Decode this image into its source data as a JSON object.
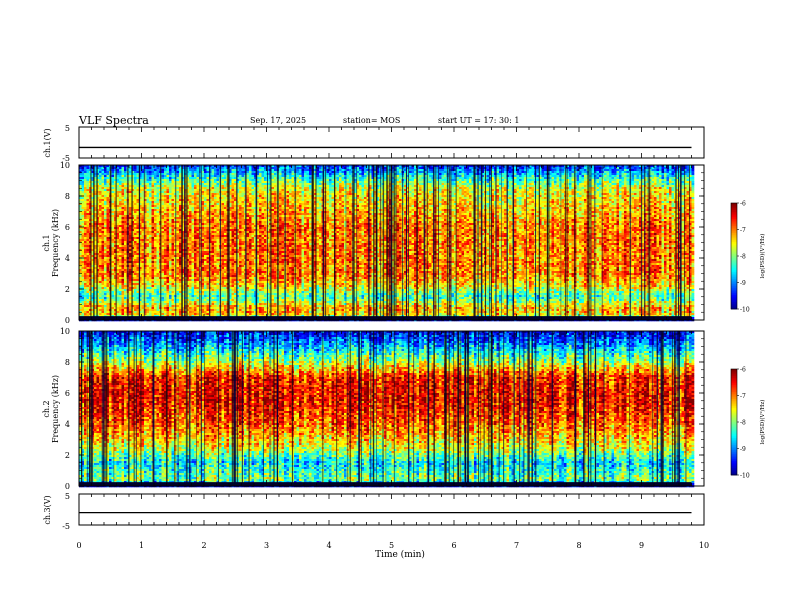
{
  "header": {
    "title": "VLF Spectra",
    "date": "Sep. 17, 2025",
    "station": "station= MOS",
    "start_ut": "start  UT =   17: 30: 1"
  },
  "chart_data": [
    {
      "type": "line",
      "panel": "ch1-waveform",
      "ylabel": "ch.1(V)",
      "ylim": [
        -5,
        5
      ],
      "yticks": [
        "5",
        "-5"
      ],
      "xlim": [
        0,
        10
      ],
      "series": [
        {
          "x": [
            0,
            9.8
          ],
          "values": [
            -1.6,
            -1.6
          ]
        }
      ]
    },
    {
      "type": "heatmap",
      "panel": "ch1-spectrogram",
      "ylabel_line1": "ch.1",
      "ylabel_line2": "Frequency (kHz)",
      "ylim": [
        0,
        10
      ],
      "yticks": [
        "0",
        "2",
        "4",
        "6",
        "8",
        "10"
      ],
      "xlim": [
        0,
        10
      ],
      "data_xrange": [
        0,
        9.8
      ],
      "color_scale": {
        "label": "log(PSD)(V²/Hz)",
        "range": [
          -10,
          -6
        ],
        "ticks": [
          "-6",
          "-7",
          "-8",
          "-9",
          "-10"
        ]
      },
      "profile": [
        {
          "f": 0.0,
          "v": -9.8
        },
        {
          "f": 0.3,
          "v": -7.4
        },
        {
          "f": 0.8,
          "v": -7.2
        },
        {
          "f": 1.5,
          "v": -8.3
        },
        {
          "f": 2.2,
          "v": -7.4
        },
        {
          "f": 3.0,
          "v": -7.0
        },
        {
          "f": 6.0,
          "v": -7.0
        },
        {
          "f": 8.5,
          "v": -7.6
        },
        {
          "f": 9.2,
          "v": -8.4
        },
        {
          "f": 10.0,
          "v": -9.4
        }
      ]
    },
    {
      "type": "heatmap",
      "panel": "ch2-spectrogram",
      "ylabel_line1": "ch.2",
      "ylabel_line2": "Frequency (kHz)",
      "ylim": [
        0,
        10
      ],
      "yticks": [
        "0",
        "2",
        "4",
        "6",
        "8",
        "10"
      ],
      "xlim": [
        0,
        10
      ],
      "data_xrange": [
        0,
        9.8
      ],
      "color_scale": {
        "label": "log(PSD)(V²/Hz)",
        "range": [
          -10,
          -6
        ],
        "ticks": [
          "-6",
          "-7",
          "-8",
          "-9",
          "-10"
        ]
      },
      "profile": [
        {
          "f": 0.0,
          "v": -9.8
        },
        {
          "f": 0.4,
          "v": -8.0
        },
        {
          "f": 1.5,
          "v": -8.6
        },
        {
          "f": 2.5,
          "v": -7.6
        },
        {
          "f": 4.0,
          "v": -6.9
        },
        {
          "f": 5.5,
          "v": -6.5
        },
        {
          "f": 7.0,
          "v": -6.6
        },
        {
          "f": 8.0,
          "v": -7.8
        },
        {
          "f": 9.0,
          "v": -8.8
        },
        {
          "f": 10.0,
          "v": -9.6
        }
      ]
    },
    {
      "type": "line",
      "panel": "ch3-waveform",
      "ylabel": "ch.3(V)",
      "ylim": [
        -5,
        5
      ],
      "yticks": [
        "5",
        "-5"
      ],
      "xlim": [
        0,
        10
      ],
      "series": [
        {
          "x": [
            0,
            9.8
          ],
          "values": [
            -1.0,
            -1.0
          ]
        }
      ]
    }
  ],
  "x_axis": {
    "label": "Time (min)",
    "ticks": [
      "0",
      "1",
      "2",
      "3",
      "4",
      "5",
      "6",
      "7",
      "8",
      "9",
      "10"
    ]
  }
}
